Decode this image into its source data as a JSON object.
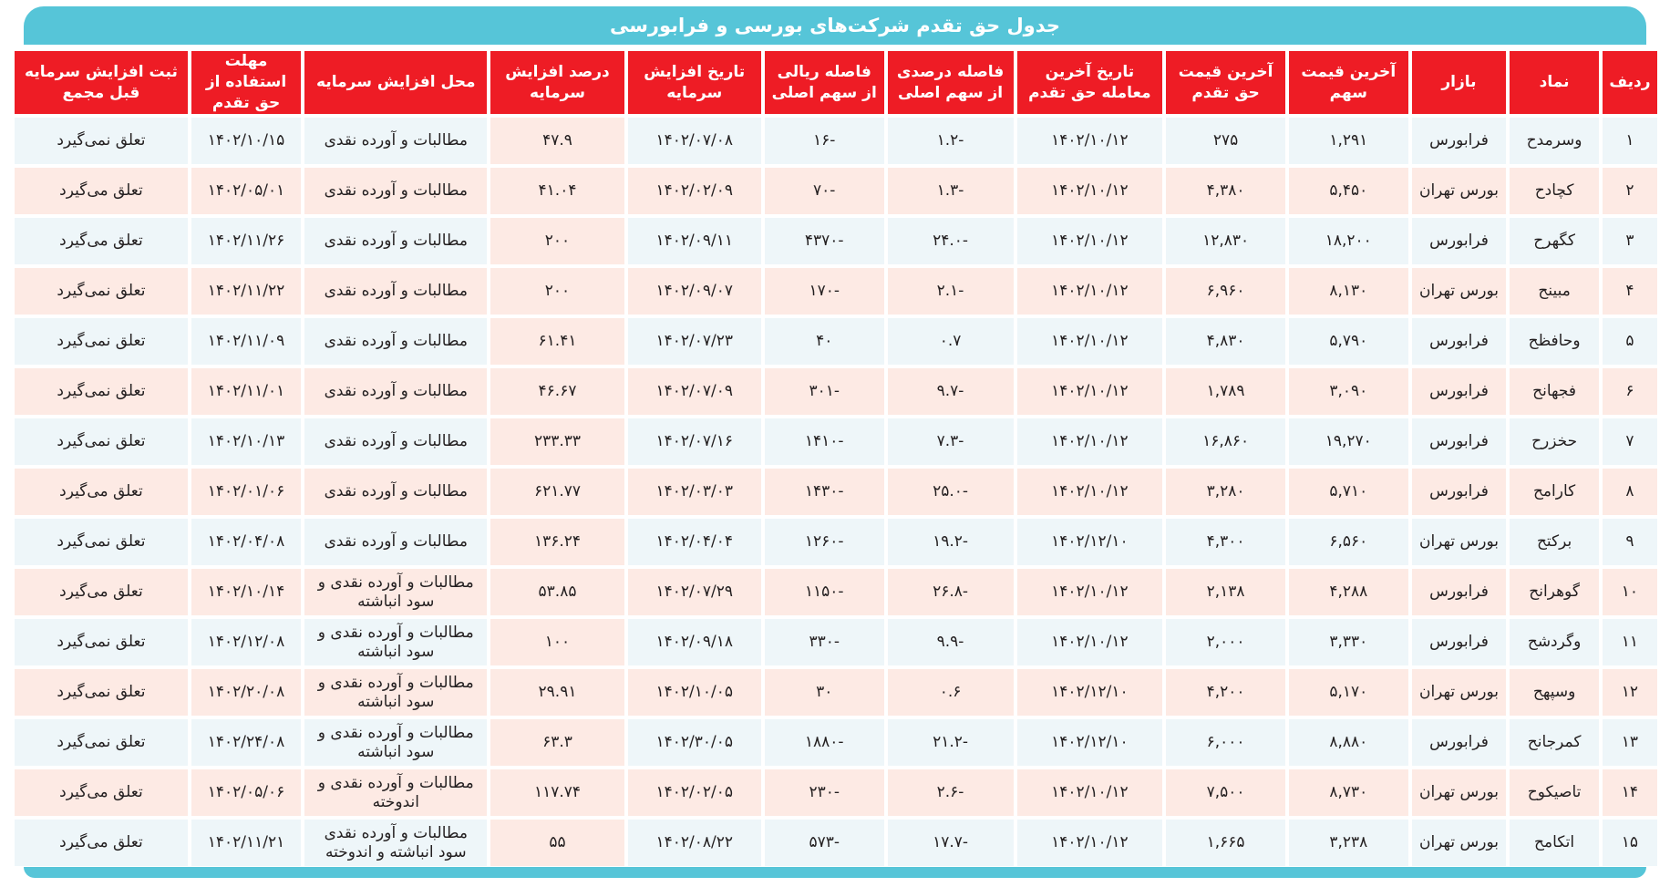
{
  "title": "جدول حق تقدم شرکت‌های بورسی و فرابورسی",
  "colors": {
    "header_bg": "#ee1c25",
    "title_bar": "#56c5d8",
    "row_blue": "#eef6f9",
    "row_pink": "#fdeae4",
    "negative": "#e32227",
    "positive": "#3aa541"
  },
  "columns": [
    "ردیف",
    "نماد",
    "بازار",
    "آخرین قیمت سهم",
    "آخرین قیمت حق تقدم",
    "تاریخ آخرین معامله حق تقدم",
    "فاصله درصدی از سهم اصلی",
    "فاصله ریالی از سهم اصلی",
    "تاریخ افزایش سرمایه",
    "درصد افزایش سرمایه",
    "محل افزایش سرمایه",
    "مهلت استفاده از حق تقدم",
    "ثبت افزایش سرمایه قبل مجمع"
  ],
  "rows": [
    {
      "n": "۱",
      "sym": "وسرمدح",
      "market": "فرابورس",
      "price": "۱,۲۹۱",
      "rprice": "۲۷۵",
      "lastdate": "۱۴۰۲/۱۰/۱۲",
      "pgap": "-۱.۲",
      "pgap_sign": "neg",
      "rgap": "-۱۶",
      "rgap_sign": "neg",
      "capdate": "۱۴۰۲/۰۷/۰۸",
      "pct": "۴۷.۹",
      "source": "مطالبات و آورده نقدی",
      "deadline": "۱۴۰۲/۱۰/۱۵",
      "reg": "تعلق نمی‌گیرد"
    },
    {
      "n": "۲",
      "sym": "کچادح",
      "market": "بورس تهران",
      "price": "۵,۴۵۰",
      "rprice": "۴,۳۸۰",
      "lastdate": "۱۴۰۲/۱۰/۱۲",
      "pgap": "-۱.۳",
      "pgap_sign": "neg",
      "rgap": "-۷۰",
      "rgap_sign": "neg",
      "capdate": "۱۴۰۲/۰۲/۰۹",
      "pct": "۴۱.۰۴",
      "source": "مطالبات و آورده نقدی",
      "deadline": "۱۴۰۲/۰۵/۰۱",
      "reg": "تعلق می‌گیرد"
    },
    {
      "n": "۳",
      "sym": "کگهرح",
      "market": "فرابورس",
      "price": "۱۸,۲۰۰",
      "rprice": "۱۲,۸۳۰",
      "lastdate": "۱۴۰۲/۱۰/۱۲",
      "pgap": "-۲۴.۰",
      "pgap_sign": "neg",
      "rgap": "-۴۳۷۰",
      "rgap_sign": "neg",
      "capdate": "۱۴۰۲/۰۹/۱۱",
      "pct": "۲۰۰",
      "source": "مطالبات و آورده نقدی",
      "deadline": "۱۴۰۲/۱۱/۲۶",
      "reg": "تعلق می‌گیرد"
    },
    {
      "n": "۴",
      "sym": "مبینح",
      "market": "بورس تهران",
      "price": "۸,۱۳۰",
      "rprice": "۶,۹۶۰",
      "lastdate": "۱۴۰۲/۱۰/۱۲",
      "pgap": "-۲.۱",
      "pgap_sign": "neg",
      "rgap": "-۱۷۰",
      "rgap_sign": "neg",
      "capdate": "۱۴۰۲/۰۹/۰۷",
      "pct": "۲۰۰",
      "source": "مطالبات و آورده نقدی",
      "deadline": "۱۴۰۲/۱۱/۲۲",
      "reg": "تعلق نمی‌گیرد"
    },
    {
      "n": "۵",
      "sym": "وحافظح",
      "market": "فرابورس",
      "price": "۵,۷۹۰",
      "rprice": "۴,۸۳۰",
      "lastdate": "۱۴۰۲/۱۰/۱۲",
      "pgap": "۰.۷",
      "pgap_sign": "pos",
      "rgap": "۴۰",
      "rgap_sign": "pos",
      "capdate": "۱۴۰۲/۰۷/۲۳",
      "pct": "۶۱.۴۱",
      "source": "مطالبات و آورده نقدی",
      "deadline": "۱۴۰۲/۱۱/۰۹",
      "reg": "تعلق نمی‌گیرد"
    },
    {
      "n": "۶",
      "sym": "فجهانح",
      "market": "فرابورس",
      "price": "۳,۰۹۰",
      "rprice": "۱,۷۸۹",
      "lastdate": "۱۴۰۲/۱۰/۱۲",
      "pgap": "-۹.۷",
      "pgap_sign": "neg",
      "rgap": "-۳۰۱",
      "rgap_sign": "neg",
      "capdate": "۱۴۰۲/۰۷/۰۹",
      "pct": "۴۶.۶۷",
      "source": "مطالبات و آورده نقدی",
      "deadline": "۱۴۰۲/۱۱/۰۱",
      "reg": "تعلق نمی‌گیرد"
    },
    {
      "n": "۷",
      "sym": "حخزرح",
      "market": "فرابورس",
      "price": "۱۹,۲۷۰",
      "rprice": "۱۶,۸۶۰",
      "lastdate": "۱۴۰۲/۱۰/۱۲",
      "pgap": "-۷.۳",
      "pgap_sign": "neg",
      "rgap": "-۱۴۱۰",
      "rgap_sign": "neg",
      "capdate": "۱۴۰۲/۰۷/۱۶",
      "pct": "۲۳۳.۳۳",
      "source": "مطالبات و آورده نقدی",
      "deadline": "۱۴۰۲/۱۰/۱۳",
      "reg": "تعلق نمی‌گیرد"
    },
    {
      "n": "۸",
      "sym": "کارامح",
      "market": "فرابورس",
      "price": "۵,۷۱۰",
      "rprice": "۳,۲۸۰",
      "lastdate": "۱۴۰۲/۱۰/۱۲",
      "pgap": "-۲۵.۰",
      "pgap_sign": "neg",
      "rgap": "-۱۴۳۰",
      "rgap_sign": "neg",
      "capdate": "۱۴۰۲/۰۳/۰۳",
      "pct": "۶۲۱.۷۷",
      "source": "مطالبات و آورده نقدی",
      "deadline": "۱۴۰۲/۰۱/۰۶",
      "reg": "تعلق می‌گیرد"
    },
    {
      "n": "۹",
      "sym": "برکتح",
      "market": "بورس تهران",
      "price": "۶,۵۶۰",
      "rprice": "۴,۳۰۰",
      "lastdate": "۱۴۰۲/۱۲/۱۰",
      "pgap": "-۱۹.۲",
      "pgap_sign": "neg",
      "rgap": "-۱۲۶۰",
      "rgap_sign": "neg",
      "capdate": "۱۴۰۲/۰۴/۰۴",
      "pct": "۱۳۶.۲۴",
      "source": "مطالبات و آورده نقدی",
      "deadline": "۱۴۰۲/۰۴/۰۸",
      "reg": "تعلق نمی‌گیرد"
    },
    {
      "n": "۱۰",
      "sym": "گوهرانح",
      "market": "فرابورس",
      "price": "۴,۲۸۸",
      "rprice": "۲,۱۳۸",
      "lastdate": "۱۴۰۲/۱۰/۱۲",
      "pgap": "-۲۶.۸",
      "pgap_sign": "neg",
      "rgap": "-۱۱۵۰",
      "rgap_sign": "neg",
      "capdate": "۱۴۰۲/۰۷/۲۹",
      "pct": "۵۳.۸۵",
      "source": "مطالبات و آورده نقدی و سود انباشته",
      "deadline": "۱۴۰۲/۱۰/۱۴",
      "reg": "تعلق می‌گیرد"
    },
    {
      "n": "۱۱",
      "sym": "وگردشح",
      "market": "فرابورس",
      "price": "۳,۳۳۰",
      "rprice": "۲,۰۰۰",
      "lastdate": "۱۴۰۲/۱۰/۱۲",
      "pgap": "-۹.۹",
      "pgap_sign": "neg",
      "rgap": "-۳۳۰",
      "rgap_sign": "neg",
      "capdate": "۱۴۰۲/۰۹/۱۸",
      "pct": "۱۰۰",
      "source": "مطالبات و آورده نقدی و سود انباشته",
      "deadline": "۱۴۰۲/۱۲/۰۸",
      "reg": "تعلق نمی‌گیرد"
    },
    {
      "n": "۱۲",
      "sym": "وسپهح",
      "market": "بورس تهران",
      "price": "۵,۱۷۰",
      "rprice": "۴,۲۰۰",
      "lastdate": "۱۴۰۲/۱۲/۱۰",
      "pgap": "۰.۶",
      "pgap_sign": "pos",
      "rgap": "۳۰",
      "rgap_sign": "pos",
      "capdate": "۱۴۰۲/۱۰/۰۵",
      "pct": "۲۹.۹۱",
      "source": "مطالبات و آورده نقدی و سود انباشته",
      "deadline": "۱۴۰۲/۲۰/۰۸",
      "reg": "تعلق نمی‌گیرد"
    },
    {
      "n": "۱۳",
      "sym": "کمرجانح",
      "market": "فرابورس",
      "price": "۸,۸۸۰",
      "rprice": "۶,۰۰۰",
      "lastdate": "۱۴۰۲/۱۲/۱۰",
      "pgap": "-۲۱.۲",
      "pgap_sign": "neg",
      "rgap": "-۱۸۸۰",
      "rgap_sign": "neg",
      "capdate": "۱۴۰۲/۳۰/۰۵",
      "pct": "۶۳.۳",
      "source": "مطالبات و آورده نقدی و سود انباشته",
      "deadline": "۱۴۰۲/۲۴/۰۸",
      "reg": "تعلق نمی‌گیرد"
    },
    {
      "n": "۱۴",
      "sym": "تاصیکوح",
      "market": "بورس تهران",
      "price": "۸,۷۳۰",
      "rprice": "۷,۵۰۰",
      "lastdate": "۱۴۰۲/۱۰/۱۲",
      "pgap": "-۲.۶",
      "pgap_sign": "neg",
      "rgap": "-۲۳۰",
      "rgap_sign": "neg",
      "capdate": "۱۴۰۲/۰۲/۰۵",
      "pct": "۱۱۷.۷۴",
      "source": "مطالبات و آورده نقدی و اندوخته",
      "deadline": "۱۴۰۲/۰۵/۰۶",
      "reg": "تعلق می‌گیرد"
    },
    {
      "n": "۱۵",
      "sym": "اتکامح",
      "market": "بورس تهران",
      "price": "۳,۲۳۸",
      "rprice": "۱,۶۶۵",
      "lastdate": "۱۴۰۲/۱۰/۱۲",
      "pgap": "-۱۷.۷",
      "pgap_sign": "neg",
      "rgap": "-۵۷۳",
      "rgap_sign": "neg",
      "capdate": "۱۴۰۲/۰۸/۲۲",
      "pct": "۵۵",
      "source": "مطالبات و آورده نقدی سود انباشته و اندوخته",
      "deadline": "۱۴۰۲/۱۱/۲۱",
      "reg": "تعلق می‌گیرد"
    }
  ]
}
